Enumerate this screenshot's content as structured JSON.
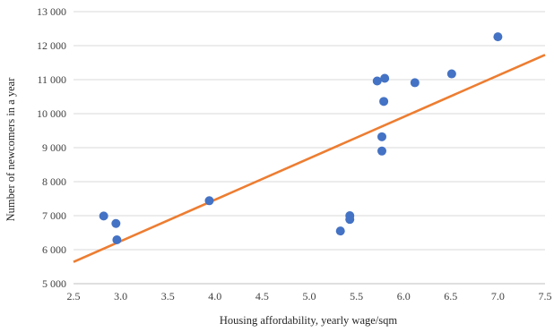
{
  "chart_data": {
    "type": "scatter",
    "title": "",
    "xlabel": "Housing affordability, yearly wage/sqm",
    "ylabel": "Number of newcomers in a year",
    "xlim": [
      2.5,
      7.5
    ],
    "ylim": [
      5000,
      13000
    ],
    "x_ticks": [
      {
        "value": 2.5,
        "label": "2.5"
      },
      {
        "value": 3.0,
        "label": "3.0"
      },
      {
        "value": 3.5,
        "label": "3.5"
      },
      {
        "value": 4.0,
        "label": "4.0"
      },
      {
        "value": 4.5,
        "label": "4.5"
      },
      {
        "value": 5.0,
        "label": "5.0"
      },
      {
        "value": 5.5,
        "label": "5.5"
      },
      {
        "value": 6.0,
        "label": "6.0"
      },
      {
        "value": 6.5,
        "label": "6.5"
      },
      {
        "value": 7.0,
        "label": "7.0"
      },
      {
        "value": 7.5,
        "label": "7.5"
      }
    ],
    "y_ticks": [
      {
        "value": 5000,
        "label": "5 000"
      },
      {
        "value": 6000,
        "label": "6 000"
      },
      {
        "value": 7000,
        "label": "7 000"
      },
      {
        "value": 8000,
        "label": "8 000"
      },
      {
        "value": 9000,
        "label": "9 000"
      },
      {
        "value": 10000,
        "label": "10 000"
      },
      {
        "value": 11000,
        "label": "11 000"
      },
      {
        "value": 12000,
        "label": "12 000"
      },
      {
        "value": 13000,
        "label": "13 000"
      }
    ],
    "grid": {
      "horizontal": true,
      "vertical": false
    },
    "legend": "none",
    "series": [
      {
        "color": "#4472c4",
        "points": [
          {
            "x": 2.82,
            "y": 6990
          },
          {
            "x": 2.95,
            "y": 6770
          },
          {
            "x": 2.96,
            "y": 6290
          },
          {
            "x": 3.94,
            "y": 7440
          },
          {
            "x": 5.33,
            "y": 6550
          },
          {
            "x": 5.43,
            "y": 7000
          },
          {
            "x": 5.43,
            "y": 6890
          },
          {
            "x": 5.72,
            "y": 10960
          },
          {
            "x": 5.77,
            "y": 9320
          },
          {
            "x": 5.77,
            "y": 8900
          },
          {
            "x": 5.79,
            "y": 10360
          },
          {
            "x": 5.8,
            "y": 11040
          },
          {
            "x": 6.12,
            "y": 10910
          },
          {
            "x": 6.51,
            "y": 11170
          },
          {
            "x": 7.0,
            "y": 12260
          }
        ]
      }
    ],
    "trendline": {
      "type": "linear",
      "color": "#ed7d31",
      "from": {
        "x": 2.5,
        "y": 5640
      },
      "to": {
        "x": 7.5,
        "y": 11730
      }
    }
  }
}
